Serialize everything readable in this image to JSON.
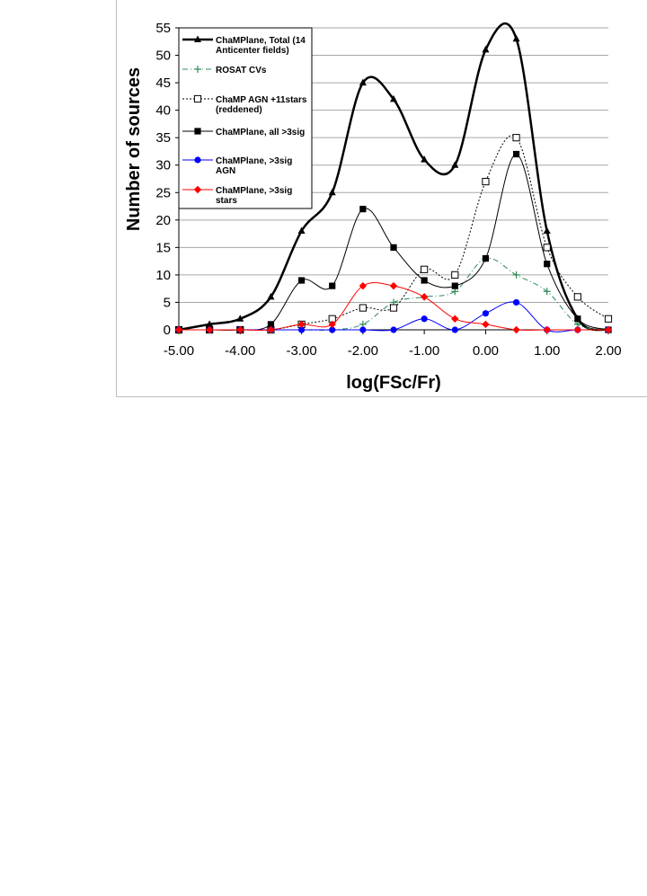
{
  "chart_data": {
    "type": "line",
    "title": "",
    "xlabel": "log(FSc/Fr)",
    "ylabel": "Number of sources",
    "xlim": [
      -5,
      2
    ],
    "ylim": [
      0,
      55
    ],
    "xticks": [
      "-5.00",
      "-4.00",
      "-3.00",
      "-2.00",
      "-1.00",
      "0.00",
      "1.00",
      "2.00"
    ],
    "yticks": [
      "0",
      "5",
      "10",
      "15",
      "20",
      "25",
      "30",
      "35",
      "40",
      "45",
      "50",
      "55"
    ],
    "grid": "horizontal",
    "legend_placement": "top-left",
    "x": [
      -5.0,
      -4.5,
      -4.0,
      -3.5,
      -3.0,
      -2.5,
      -2.0,
      -1.5,
      -1.0,
      -0.5,
      0.0,
      0.5,
      1.0,
      1.5,
      2.0
    ],
    "series": [
      {
        "name": "ChaMPlane, Total (14 Anticenter fields)",
        "name_lines": [
          "ChaMPlane, Total (14",
          "Anticenter fields)"
        ],
        "color": "#000000",
        "stroke_width": 2.5,
        "dash": "",
        "marker": "triangle",
        "values": [
          0,
          1,
          2,
          6,
          18,
          25,
          45,
          42,
          31,
          30,
          51,
          53,
          18,
          2,
          0
        ]
      },
      {
        "name": "ROSAT CVs",
        "name_lines": [
          "ROSAT CVs"
        ],
        "color": "#2e8b57",
        "stroke_width": 1,
        "dash": "6,3,1,3",
        "marker": "plus",
        "values": [
          0,
          0,
          0,
          0,
          0,
          0,
          1,
          5,
          6,
          7,
          13,
          10,
          7,
          1,
          0
        ]
      },
      {
        "name": "ChaMP AGN +11stars (reddened)",
        "name_lines": [
          "ChaMP AGN +11stars",
          "(reddened)"
        ],
        "color": "#000000",
        "stroke_width": 1,
        "dash": "2,2",
        "marker": "open-square",
        "values": [
          0,
          0,
          0,
          0,
          1,
          2,
          4,
          4,
          11,
          10,
          27,
          35,
          15,
          6,
          2
        ]
      },
      {
        "name": "ChaMPlane, all >3sig",
        "name_lines": [
          "ChaMPlane, all >3sig"
        ],
        "color": "#000000",
        "stroke_width": 1,
        "dash": "",
        "marker": "square",
        "values": [
          0,
          0,
          0,
          1,
          9,
          8,
          22,
          15,
          9,
          8,
          13,
          32,
          12,
          2,
          0
        ]
      },
      {
        "name": "ChaMPlane, >3sig AGN",
        "name_lines": [
          "ChaMPlane, >3sig",
          "AGN"
        ],
        "color": "#0000ff",
        "stroke_width": 1,
        "dash": "",
        "marker": "circle",
        "values": [
          0,
          0,
          0,
          0,
          0,
          0,
          0,
          0,
          2,
          0,
          3,
          5,
          0,
          0,
          0
        ]
      },
      {
        "name": "ChaMPlane, >3sig stars",
        "name_lines": [
          "ChaMPlane, >3sig",
          "stars"
        ],
        "color": "#ff0000",
        "stroke_width": 1,
        "dash": "",
        "marker": "diamond",
        "values": [
          0,
          0,
          0,
          0,
          1,
          1,
          8,
          8,
          6,
          2,
          1,
          0,
          0,
          0,
          0
        ]
      }
    ]
  }
}
